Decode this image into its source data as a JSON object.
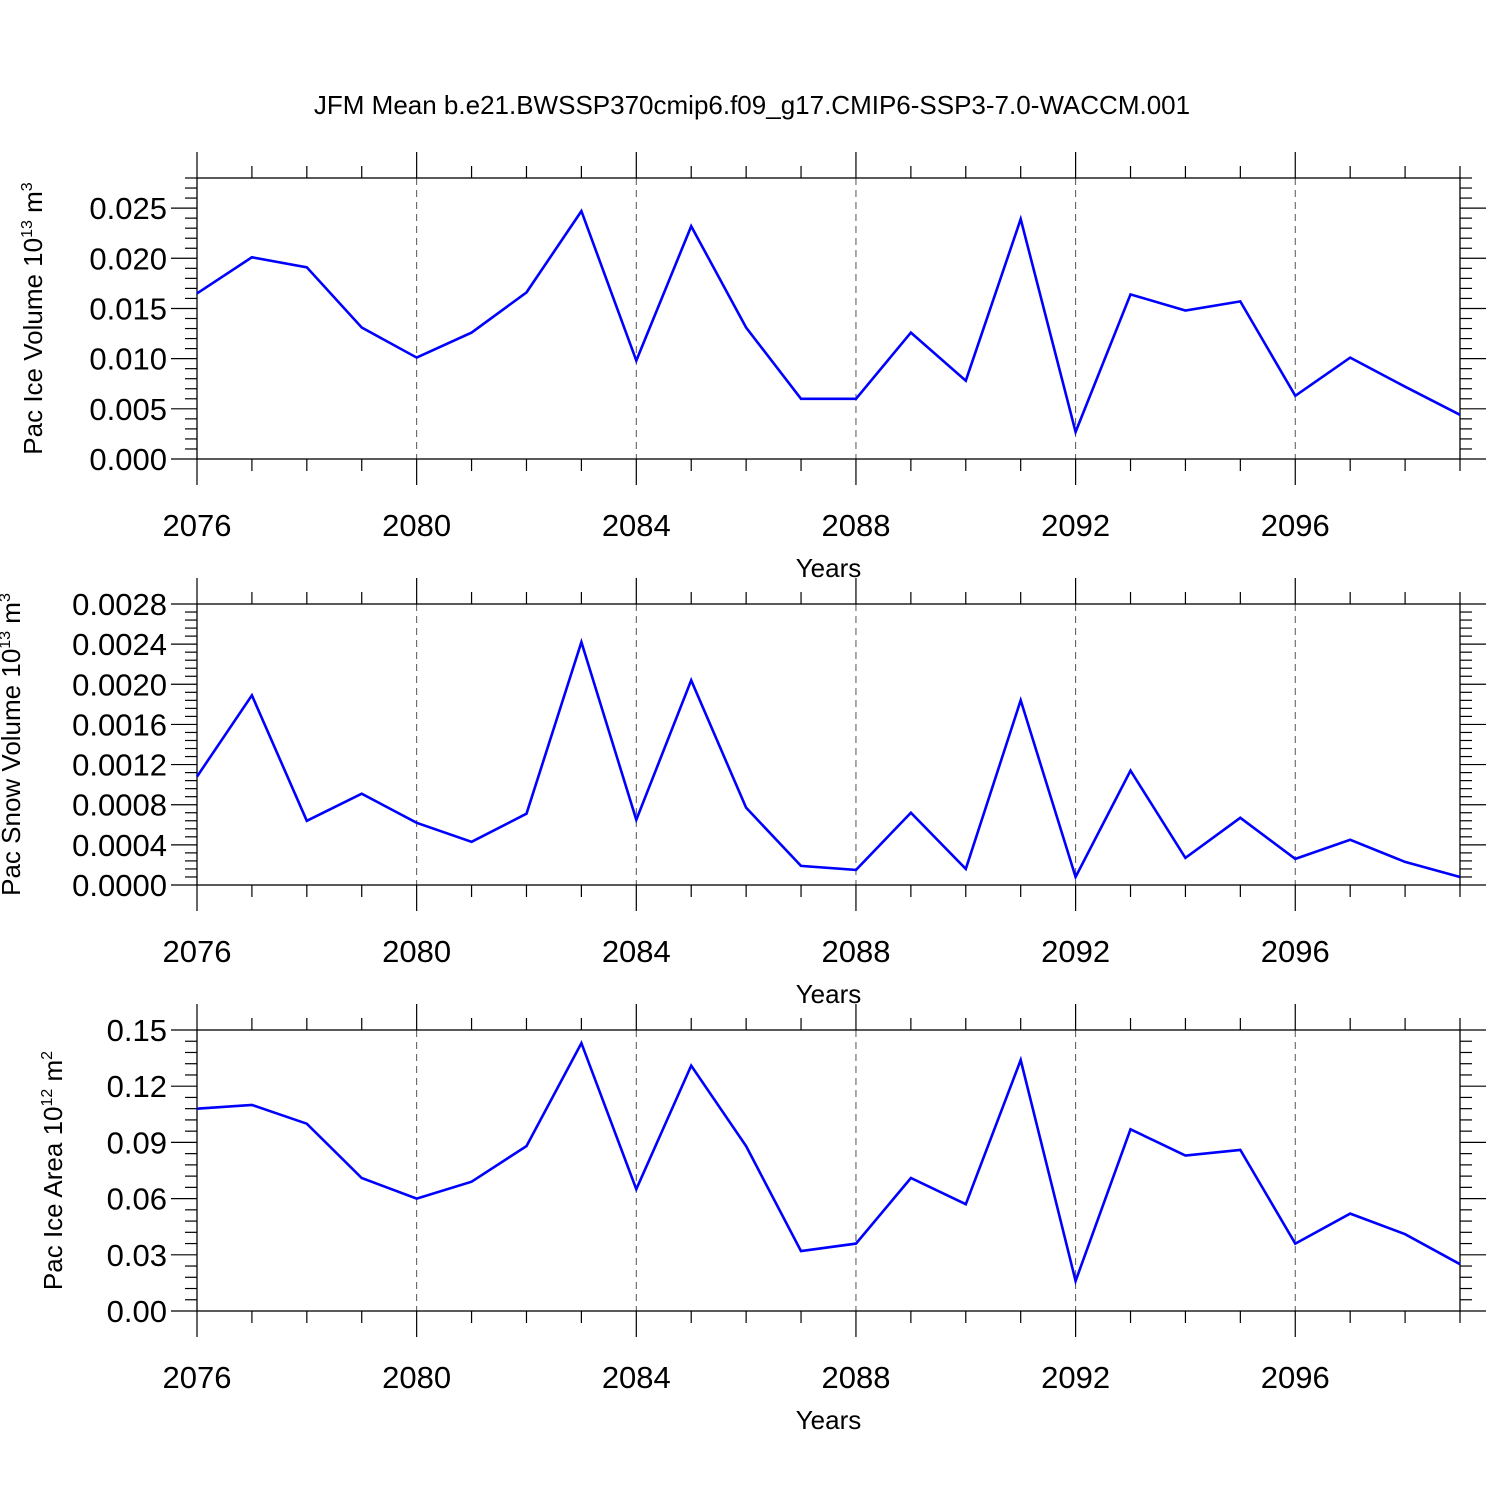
{
  "figure_title": "JFM Mean b.e21.BWSSP370cmip6.f09_g17.CMIP6-SSP3-7.0-WACCM.001",
  "chart_data": [
    {
      "type": "line",
      "title": "JFM Mean b.e21.BWSSP370cmip6.f09_g17.CMIP6-SSP3-7.0-WACCM.001",
      "xlabel": "Years",
      "ylabel": {
        "main": "Pac Ice Volume 10",
        "exp": "13",
        "unit": "m",
        "unit_exp": "3"
      },
      "x": [
        2076,
        2077,
        2078,
        2079,
        2080,
        2081,
        2082,
        2083,
        2084,
        2085,
        2086,
        2087,
        2088,
        2089,
        2090,
        2091,
        2092,
        2093,
        2094,
        2095,
        2096,
        2097,
        2098,
        2099
      ],
      "values": [
        0.0165,
        0.0201,
        0.0191,
        0.0131,
        0.0101,
        0.0126,
        0.0166,
        0.0247,
        0.0098,
        0.0232,
        0.0131,
        0.006,
        0.006,
        0.0126,
        0.0078,
        0.0239,
        0.0027,
        0.0164,
        0.0148,
        0.0157,
        0.0063,
        0.0101,
        0.0072,
        0.0044
      ],
      "xlim": [
        2076,
        2099
      ],
      "ylim": [
        0,
        0.028
      ],
      "xticks": [
        "2076",
        "2080",
        "2084",
        "2088",
        "2092",
        "2096"
      ],
      "yticks": [
        "0.000",
        "0.005",
        "0.010",
        "0.015",
        "0.020",
        "0.025"
      ],
      "line_color": "#0000ff"
    },
    {
      "type": "line",
      "xlabel": "Years",
      "ylabel": {
        "main": "Pac Snow Volume 10",
        "exp": "13",
        "unit": "m",
        "unit_exp": "3"
      },
      "x": [
        2076,
        2077,
        2078,
        2079,
        2080,
        2081,
        2082,
        2083,
        2084,
        2085,
        2086,
        2087,
        2088,
        2089,
        2090,
        2091,
        2092,
        2093,
        2094,
        2095,
        2096,
        2097,
        2098,
        2099
      ],
      "values": [
        0.00108,
        0.00189,
        0.00064,
        0.00091,
        0.00062,
        0.00043,
        0.00071,
        0.00242,
        0.00065,
        0.00204,
        0.00077,
        0.00019,
        0.00015,
        0.00072,
        0.00016,
        0.00184,
        8e-05,
        0.00114,
        0.00027,
        0.00067,
        0.00026,
        0.00045,
        0.00023,
        8e-05
      ],
      "xlim": [
        2076,
        2099
      ],
      "ylim": [
        0,
        0.0028
      ],
      "xticks": [
        "2076",
        "2080",
        "2084",
        "2088",
        "2092",
        "2096"
      ],
      "yticks": [
        "0.0000",
        "0.0004",
        "0.0008",
        "0.0012",
        "0.0016",
        "0.0020",
        "0.0024",
        "0.0028"
      ],
      "line_color": "#0000ff"
    },
    {
      "type": "line",
      "xlabel": "Years",
      "ylabel": {
        "main": "Pac Ice Area 10",
        "exp": "12",
        "unit": "m",
        "unit_exp": "2"
      },
      "x": [
        2076,
        2077,
        2078,
        2079,
        2080,
        2081,
        2082,
        2083,
        2084,
        2085,
        2086,
        2087,
        2088,
        2089,
        2090,
        2091,
        2092,
        2093,
        2094,
        2095,
        2096,
        2097,
        2098,
        2099
      ],
      "values": [
        0.108,
        0.11,
        0.1,
        0.071,
        0.06,
        0.069,
        0.088,
        0.143,
        0.065,
        0.131,
        0.088,
        0.032,
        0.036,
        0.071,
        0.057,
        0.134,
        0.016,
        0.097,
        0.083,
        0.086,
        0.036,
        0.052,
        0.041,
        0.025
      ],
      "xlim": [
        2076,
        2099
      ],
      "ylim": [
        0,
        0.15
      ],
      "xticks": [
        "2076",
        "2080",
        "2084",
        "2088",
        "2092",
        "2096"
      ],
      "yticks": [
        "0.00",
        "0.03",
        "0.06",
        "0.09",
        "0.12",
        "0.15"
      ],
      "line_color": "#0000ff"
    }
  ]
}
